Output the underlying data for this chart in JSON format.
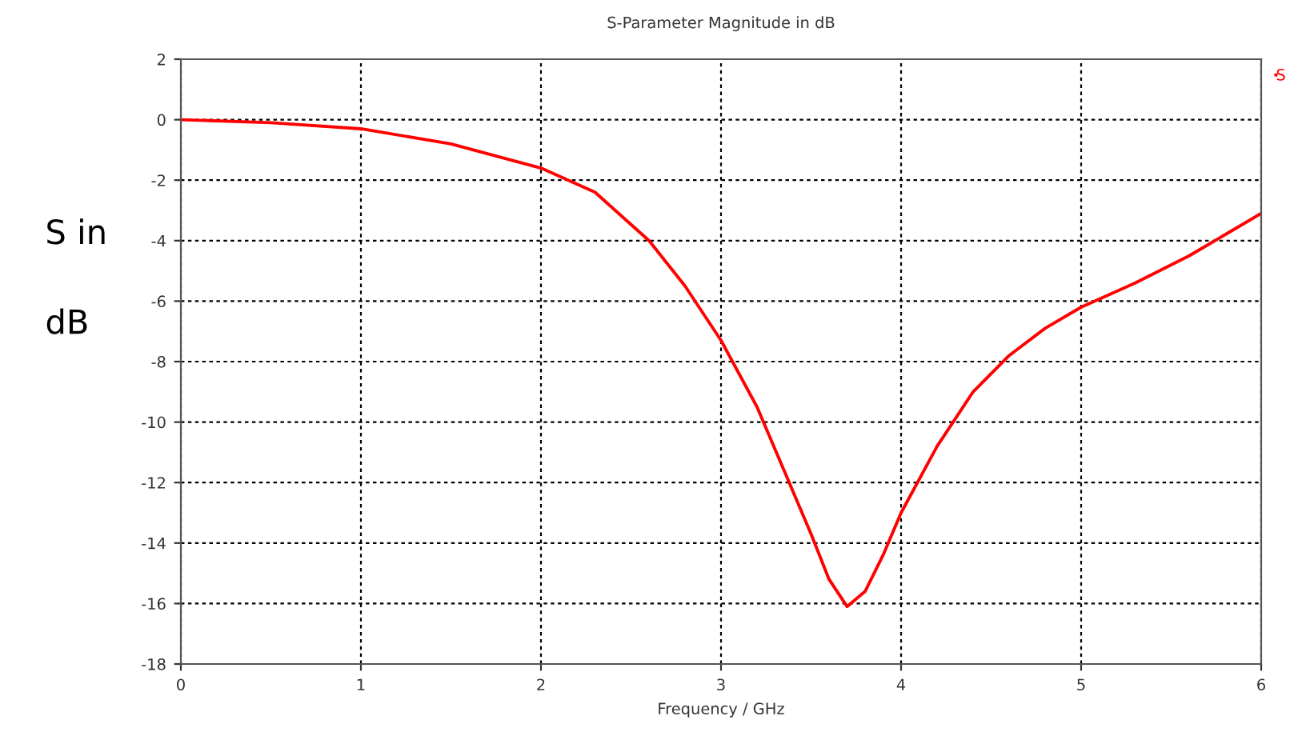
{
  "chart_data": {
    "type": "line",
    "title": "S-Parameter Magnitude in dB",
    "xlabel": "Frequency / GHz",
    "ylabel": "S in\n\ndB",
    "series": [
      {
        "name": "S",
        "color": "#ff0000",
        "x": [
          0,
          0.5,
          1.0,
          1.5,
          2.0,
          2.3,
          2.6,
          2.8,
          3.0,
          3.2,
          3.4,
          3.5,
          3.6,
          3.7,
          3.8,
          3.9,
          4.0,
          4.2,
          4.4,
          4.6,
          4.8,
          5.0,
          5.3,
          5.6,
          5.8,
          6.0
        ],
        "values": [
          0,
          -0.1,
          -0.3,
          -0.8,
          -1.6,
          -2.4,
          -4.0,
          -5.5,
          -7.3,
          -9.5,
          -12.3,
          -13.7,
          -15.2,
          -16.1,
          -15.6,
          -14.4,
          -13.0,
          -10.8,
          -9.0,
          -7.8,
          -6.9,
          -6.2,
          -5.4,
          -4.5,
          -3.8,
          -3.1
        ]
      }
    ],
    "xlim": [
      0,
      6
    ],
    "xticks": [
      0,
      1,
      2,
      3,
      4,
      5,
      6
    ],
    "ylim": [
      -18,
      2
    ],
    "yticks": [
      2,
      0,
      -2,
      -4,
      -6,
      -8,
      -10,
      -12,
      -14,
      -16,
      -18
    ],
    "grid": true,
    "legend": "top right",
    "line_style": "solid",
    "marker": "none"
  }
}
